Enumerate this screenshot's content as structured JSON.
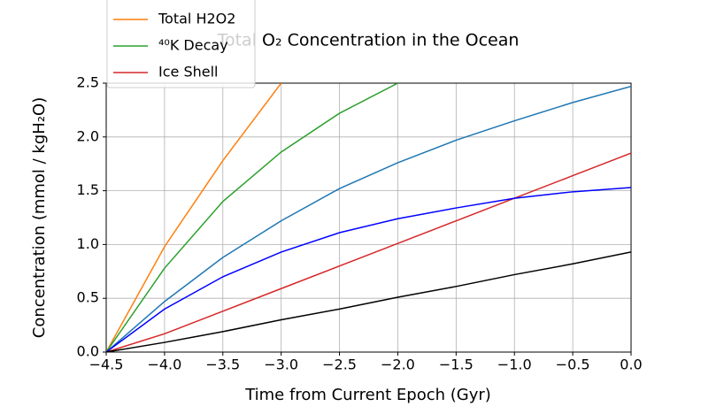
{
  "chart_data": {
    "type": "line",
    "title": "Total O₂ Concentration in the Ocean",
    "x_label": "Time from Current Epoch (Gyr)",
    "y_label": "Concentration (mmol / kgH₂O)",
    "x": [
      -4.5,
      -4.0,
      -3.5,
      -3.0,
      -2.5,
      -2.0,
      -1.5,
      -1.0,
      -0.5,
      0.0
    ],
    "series": [
      {
        "name": "Ice Shell",
        "color": "#1f77b4",
        "values": [
          0,
          0.47,
          0.88,
          1.22,
          1.52,
          1.76,
          1.97,
          2.15,
          2.32,
          2.47
        ]
      },
      {
        "name": "Total H2O2",
        "color": "#ff7f0e",
        "values": [
          0,
          0.98,
          1.78,
          2.5,
          null,
          null,
          null,
          null,
          null,
          null
        ]
      },
      {
        "name": "⁴⁰K Decay",
        "color": "#2ca02c",
        "values": [
          0,
          0.78,
          1.4,
          1.86,
          2.22,
          2.5,
          null,
          null,
          null,
          null
        ]
      },
      {
        "name": "Ice Shell",
        "color": "#d62728",
        "values": [
          0,
          0.17,
          0.38,
          0.59,
          0.8,
          1.01,
          1.22,
          1.43,
          1.64,
          1.85
        ]
      },
      {
        "color": "#0000ff",
        "values": [
          0,
          0.4,
          0.7,
          0.93,
          1.11,
          1.24,
          1.34,
          1.43,
          1.49,
          1.53
        ]
      },
      {
        "color": "#000000",
        "values": [
          0,
          0.09,
          0.19,
          0.3,
          0.4,
          0.51,
          0.61,
          0.72,
          0.82,
          0.93
        ]
      }
    ],
    "xlim": [
      -4.5,
      0.0
    ],
    "ylim": [
      0,
      2.5
    ],
    "xticks": [
      {
        "value": -4.5,
        "label": "−4.5"
      },
      {
        "value": -4.0,
        "label": "−4.0"
      },
      {
        "value": -3.5,
        "label": "−3.5"
      },
      {
        "value": -3.0,
        "label": "−3.0"
      },
      {
        "value": -2.5,
        "label": "−2.5"
      },
      {
        "value": -2.0,
        "label": "−2.0"
      },
      {
        "value": -1.5,
        "label": "−1.5"
      },
      {
        "value": -1.0,
        "label": "−1.0"
      },
      {
        "value": -0.5,
        "label": "−0.5"
      },
      {
        "value": 0,
        "label": "0.0"
      }
    ],
    "yticks": [
      {
        "value": 0,
        "label": "0.0"
      },
      0.5,
      {
        "value": 1,
        "label": "1.0"
      },
      1.5,
      {
        "value": 2,
        "label": "2.0"
      },
      2.5
    ],
    "grid": true,
    "legend": "upper left"
  }
}
